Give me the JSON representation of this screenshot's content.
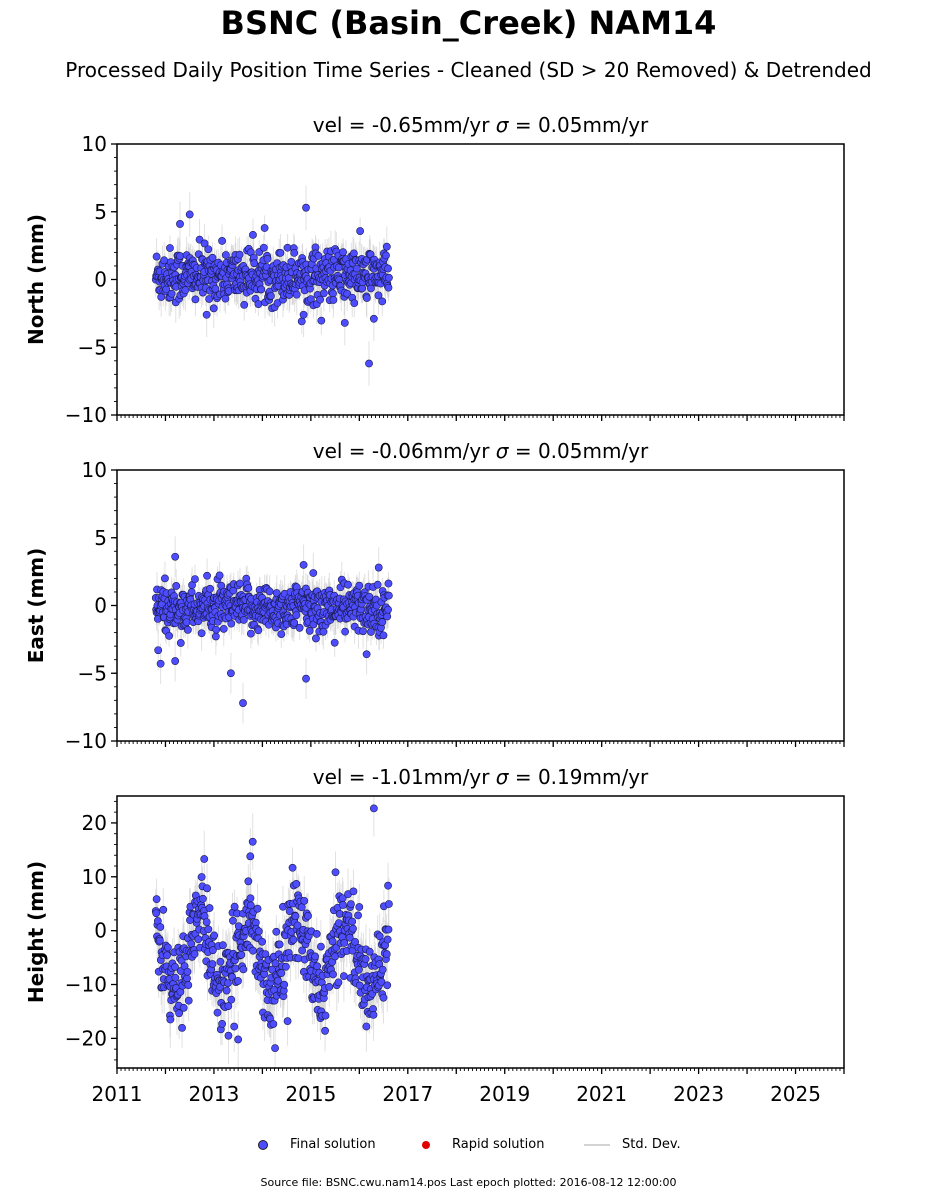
{
  "title": "BSNC (Basin_Creek) NAM14",
  "subtitle": "Processed Daily Position Time Series - Cleaned (SD > 20 Removed) & Detrended",
  "colors": {
    "final_solution": "#4d4dff",
    "rapid_solution": "#e00000",
    "std_dev": "#c8c8c8"
  },
  "legend": {
    "final": "Final solution",
    "rapid": "Rapid solution",
    "std": "Std. Dev."
  },
  "footer": "Source file: BSNC.cwu.nam14.pos  Last epoch plotted: 2016-08-12 12:00:00",
  "chart_data": [
    {
      "type": "scatter",
      "title_vel": "vel = -0.65mm/yr",
      "title_sigma": " = 0.05mm/yr",
      "ylabel": "North (mm)",
      "ylim": [
        -10,
        10
      ],
      "yticks": [
        10,
        5,
        0,
        -5,
        -10
      ],
      "ytick_labels": [
        "10",
        "5",
        "0",
        "−5",
        "−10"
      ],
      "xlim": [
        2011.0,
        2026.0
      ],
      "date_range": [
        2011.8,
        2016.61
      ],
      "series_name": "Final solution",
      "band": {
        "mean": 0.3,
        "sd": 1.0,
        "err": 1.1
      },
      "outliers": [
        [
          2012.5,
          4.8
        ],
        [
          2012.3,
          4.1
        ],
        [
          2014.9,
          5.3
        ],
        [
          2016.2,
          -6.2
        ],
        [
          2016.3,
          -2.9
        ],
        [
          2015.7,
          -3.2
        ],
        [
          2012.85,
          -2.6
        ],
        [
          2014.85,
          -2.6
        ]
      ]
    },
    {
      "type": "scatter",
      "title_vel": "vel = -0.06mm/yr",
      "title_sigma": " = 0.05mm/yr",
      "ylabel": "East (mm)",
      "ylim": [
        -10,
        10
      ],
      "yticks": [
        10,
        5,
        0,
        -5,
        -10
      ],
      "ytick_labels": [
        "10",
        "5",
        "0",
        "−5",
        "−10"
      ],
      "xlim": [
        2011.0,
        2026.0
      ],
      "date_range": [
        2011.8,
        2016.61
      ],
      "series_name": "Final solution",
      "band": {
        "mean": -0.2,
        "sd": 0.9,
        "err": 1.0
      },
      "outliers": [
        [
          2013.6,
          -7.2
        ],
        [
          2014.9,
          -5.4
        ],
        [
          2013.35,
          -5.0
        ],
        [
          2012.2,
          -4.1
        ],
        [
          2011.9,
          -4.3
        ],
        [
          2011.85,
          -3.3
        ],
        [
          2012.2,
          3.6
        ],
        [
          2014.85,
          3.0
        ],
        [
          2016.4,
          2.8
        ],
        [
          2015.05,
          2.4
        ],
        [
          2016.15,
          -3.6
        ]
      ]
    },
    {
      "type": "scatter",
      "title_vel": "vel = -1.01mm/yr",
      "title_sigma": " = 0.19mm/yr",
      "ylabel": "Height (mm)",
      "ylim": [
        -25.5,
        25
      ],
      "yticks": [
        20,
        10,
        0,
        -10,
        -20
      ],
      "ytick_labels": [
        "20",
        "10",
        "0",
        "−10",
        "−20"
      ],
      "xlim": [
        2011.0,
        2026.0
      ],
      "date_range": [
        2011.8,
        2016.61
      ],
      "series_name": "Final solution",
      "band": {
        "mean": -4.5,
        "amp": 6.5,
        "sd": 4.0,
        "err": 3.5
      },
      "outliers": [
        [
          2016.3,
          22.7
        ],
        [
          2013.8,
          16.5
        ],
        [
          2013.75,
          13.8
        ],
        [
          2012.8,
          13.3
        ],
        [
          2013.5,
          -20.2
        ],
        [
          2013.3,
          -19.5
        ],
        [
          2012.1,
          -16.5
        ]
      ]
    }
  ],
  "x_axis": {
    "ticks": [
      2011,
      2013,
      2015,
      2017,
      2019,
      2021,
      2023,
      2025
    ],
    "labels": [
      "2011",
      "2013",
      "2015",
      "2017",
      "2019",
      "2021",
      "2023",
      "2025"
    ]
  }
}
